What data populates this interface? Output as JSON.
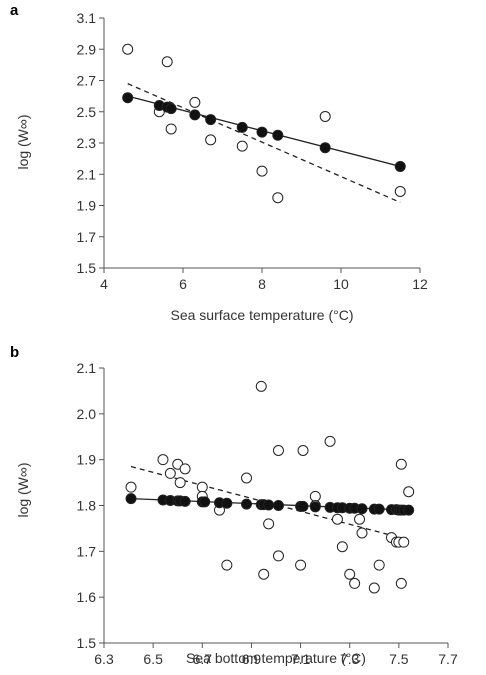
{
  "chart_data": [
    {
      "panel": "a",
      "type": "scatter",
      "xlabel": "Sea surface temperature (°C)",
      "ylabel": "log (W∞)",
      "xlim": [
        4,
        12
      ],
      "ylim": [
        1.5,
        3.1
      ],
      "xticks": [
        4,
        6,
        8,
        10,
        12
      ],
      "yticks": [
        1.5,
        1.7,
        1.9,
        2.1,
        2.3,
        2.5,
        2.7,
        2.9,
        3.1
      ],
      "xtick_labels": [
        "4",
        "6",
        "8",
        "10",
        "12"
      ],
      "ytick_labels": [
        "1.5",
        "1.7",
        "1.9",
        "2.1",
        "2.3",
        "2.5",
        "2.7",
        "2.9",
        "3.1"
      ],
      "grid": false,
      "series": [
        {
          "marker": "open-circle",
          "points": [
            [
              4.6,
              2.9
            ],
            [
              5.4,
              2.5
            ],
            [
              5.6,
              2.82
            ],
            [
              5.7,
              2.39
            ],
            [
              6.3,
              2.56
            ],
            [
              6.7,
              2.32
            ],
            [
              7.5,
              2.28
            ],
            [
              8.0,
              2.12
            ],
            [
              8.4,
              1.95
            ],
            [
              9.6,
              2.47
            ],
            [
              11.5,
              1.99
            ]
          ]
        },
        {
          "marker": "filled-circle",
          "points": [
            [
              4.6,
              2.59
            ],
            [
              5.4,
              2.54
            ],
            [
              5.6,
              2.53
            ],
            [
              5.7,
              2.52
            ],
            [
              6.3,
              2.48
            ],
            [
              6.7,
              2.45
            ],
            [
              7.5,
              2.4
            ],
            [
              8.0,
              2.37
            ],
            [
              8.4,
              2.35
            ],
            [
              9.6,
              2.27
            ],
            [
              11.5,
              2.15
            ]
          ]
        }
      ],
      "lines": [
        {
          "style": "solid",
          "from": [
            4.6,
            2.6
          ],
          "to": [
            11.5,
            2.15
          ]
        },
        {
          "style": "dashed",
          "from": [
            4.6,
            2.68
          ],
          "to": [
            11.5,
            1.92
          ]
        }
      ]
    },
    {
      "panel": "b",
      "type": "scatter",
      "xlabel": "Sea bottom temperature (°C)",
      "ylabel": "log (W∞)",
      "xlim": [
        6.3,
        7.7
      ],
      "ylim": [
        1.5,
        2.1
      ],
      "xticks": [
        6.3,
        6.5,
        6.7,
        6.9,
        7.1,
        7.3,
        7.5,
        7.7
      ],
      "yticks": [
        1.5,
        1.6,
        1.7,
        1.8,
        1.9,
        2.0,
        2.1
      ],
      "xtick_labels": [
        "6.3",
        "6.5",
        "6.7",
        "6.9",
        "7.1",
        "7.3",
        "7.5",
        "7.7"
      ],
      "ytick_labels": [
        "1.5",
        "1.6",
        "1.7",
        "1.8",
        "1.9",
        "2.0",
        "2.1"
      ],
      "grid": false,
      "series": [
        {
          "marker": "open-circle",
          "points": [
            [
              6.41,
              1.84
            ],
            [
              6.54,
              1.9
            ],
            [
              6.57,
              1.87
            ],
            [
              6.6,
              1.89
            ],
            [
              6.61,
              1.85
            ],
            [
              6.63,
              1.88
            ],
            [
              6.7,
              1.84
            ],
            [
              6.7,
              1.82
            ],
            [
              6.77,
              1.79
            ],
            [
              6.8,
              1.67
            ],
            [
              6.88,
              1.86
            ],
            [
              6.94,
              2.06
            ],
            [
              6.95,
              1.65
            ],
            [
              6.97,
              1.76
            ],
            [
              7.01,
              1.92
            ],
            [
              7.01,
              1.69
            ],
            [
              7.1,
              1.67
            ],
            [
              7.11,
              1.92
            ],
            [
              7.16,
              1.82
            ],
            [
              7.16,
              1.8
            ],
            [
              7.22,
              1.94
            ],
            [
              7.25,
              1.77
            ],
            [
              7.27,
              1.71
            ],
            [
              7.3,
              1.65
            ],
            [
              7.32,
              1.63
            ],
            [
              7.34,
              1.77
            ],
            [
              7.35,
              1.74
            ],
            [
              7.4,
              1.62
            ],
            [
              7.42,
              1.67
            ],
            [
              7.47,
              1.73
            ],
            [
              7.49,
              1.72
            ],
            [
              7.5,
              1.72
            ],
            [
              7.51,
              1.89
            ],
            [
              7.51,
              1.63
            ],
            [
              7.52,
              1.72
            ],
            [
              7.54,
              1.83
            ]
          ]
        },
        {
          "marker": "filled-circle",
          "points": [
            [
              6.41,
              1.815
            ],
            [
              6.54,
              1.812
            ],
            [
              6.57,
              1.811
            ],
            [
              6.6,
              1.81
            ],
            [
              6.61,
              1.81
            ],
            [
              6.63,
              1.809
            ],
            [
              6.7,
              1.808
            ],
            [
              6.71,
              1.808
            ],
            [
              6.77,
              1.806
            ],
            [
              6.8,
              1.805
            ],
            [
              6.88,
              1.803
            ],
            [
              6.94,
              1.802
            ],
            [
              6.95,
              1.802
            ],
            [
              6.97,
              1.801
            ],
            [
              7.01,
              1.8
            ],
            [
              7.1,
              1.798
            ],
            [
              7.11,
              1.798
            ],
            [
              7.16,
              1.797
            ],
            [
              7.22,
              1.796
            ],
            [
              7.25,
              1.795
            ],
            [
              7.27,
              1.795
            ],
            [
              7.3,
              1.794
            ],
            [
              7.32,
              1.794
            ],
            [
              7.35,
              1.793
            ],
            [
              7.4,
              1.792
            ],
            [
              7.42,
              1.792
            ],
            [
              7.47,
              1.791
            ],
            [
              7.49,
              1.791
            ],
            [
              7.5,
              1.79
            ],
            [
              7.51,
              1.79
            ],
            [
              7.52,
              1.79
            ],
            [
              7.54,
              1.79
            ]
          ]
        }
      ],
      "lines": [
        {
          "style": "solid",
          "from": [
            6.41,
            1.815
          ],
          "to": [
            7.54,
            1.79
          ]
        },
        {
          "style": "dashed",
          "from": [
            6.41,
            1.885
          ],
          "to": [
            7.54,
            1.725
          ]
        }
      ]
    }
  ]
}
